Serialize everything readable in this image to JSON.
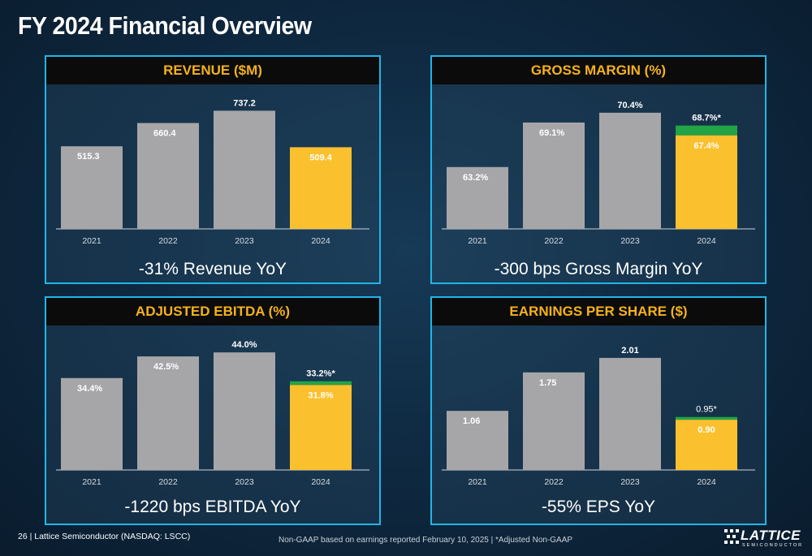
{
  "page": {
    "title": "FY 2024 Financial Overview",
    "footer_left": "26 | Lattice Semiconductor (NASDAQ: LSCC)",
    "footer_center": "Non-GAAP based on earnings reported February 10, 2025 | *Adjusted Non-GAAP",
    "logo_word": "LATTICE",
    "logo_sub": "SEMICONDUCTOR"
  },
  "colors": {
    "bar_gray": "#a6a6a9",
    "bar_highlight": "#fbc02d",
    "bar_adjusted": "#22a447",
    "header_text": "#f6b21b",
    "panel_border": "#1fb6e8"
  },
  "chart_data": [
    {
      "id": "revenue",
      "type": "bar",
      "title": "REVENUE ($M)",
      "categories": [
        "2021",
        "2022",
        "2023",
        "2024"
      ],
      "values": [
        515.3,
        660.4,
        737.2,
        509.4
      ],
      "labels": [
        "515.3",
        "660.4",
        "737.2",
        "509.4"
      ],
      "adjusted": [
        null,
        null,
        null,
        null
      ],
      "adjusted_labels": [
        null,
        null,
        null,
        null
      ],
      "highlight_index": 3,
      "ylim": [
        0,
        800
      ],
      "caption": "-31% Revenue YoY"
    },
    {
      "id": "gross-margin",
      "type": "bar",
      "title": "GROSS MARGIN (%)",
      "categories": [
        "2021",
        "2022",
        "2023",
        "2024"
      ],
      "values": [
        63.2,
        69.1,
        70.4,
        67.4
      ],
      "labels": [
        "63.2%",
        "69.1%",
        "70.4%",
        "67.4%"
      ],
      "adjusted": [
        null,
        null,
        null,
        68.7
      ],
      "adjusted_labels": [
        null,
        null,
        null,
        "68.7%*"
      ],
      "highlight_index": 3,
      "ylim": [
        55,
        72
      ],
      "caption": "-300 bps Gross Margin YoY"
    },
    {
      "id": "ebitda",
      "type": "bar",
      "title": "ADJUSTED EBITDA (%)",
      "categories": [
        "2021",
        "2022",
        "2023",
        "2024"
      ],
      "values": [
        34.4,
        42.5,
        44.0,
        31.8
      ],
      "labels": [
        "34.4%",
        "42.5%",
        "44.0%",
        "31.8%"
      ],
      "adjusted": [
        null,
        null,
        null,
        33.2
      ],
      "adjusted_labels": [
        null,
        null,
        null,
        "33.2%*"
      ],
      "highlight_index": 3,
      "ylim": [
        0,
        48
      ],
      "caption": "-1220 bps EBITDA YoY"
    },
    {
      "id": "eps",
      "type": "bar",
      "title": "EARNINGS PER SHARE ($)",
      "categories": [
        "2021",
        "2022",
        "2023",
        "2024"
      ],
      "values": [
        1.06,
        1.75,
        2.01,
        0.9
      ],
      "labels": [
        "1.06",
        "1.75",
        "2.01",
        "0.90"
      ],
      "adjusted": [
        null,
        null,
        null,
        0.95
      ],
      "adjusted_labels": [
        null,
        null,
        null,
        "0.95*"
      ],
      "highlight_index": 3,
      "ylim": [
        0,
        2.3
      ],
      "caption": "-55% EPS YoY"
    }
  ]
}
